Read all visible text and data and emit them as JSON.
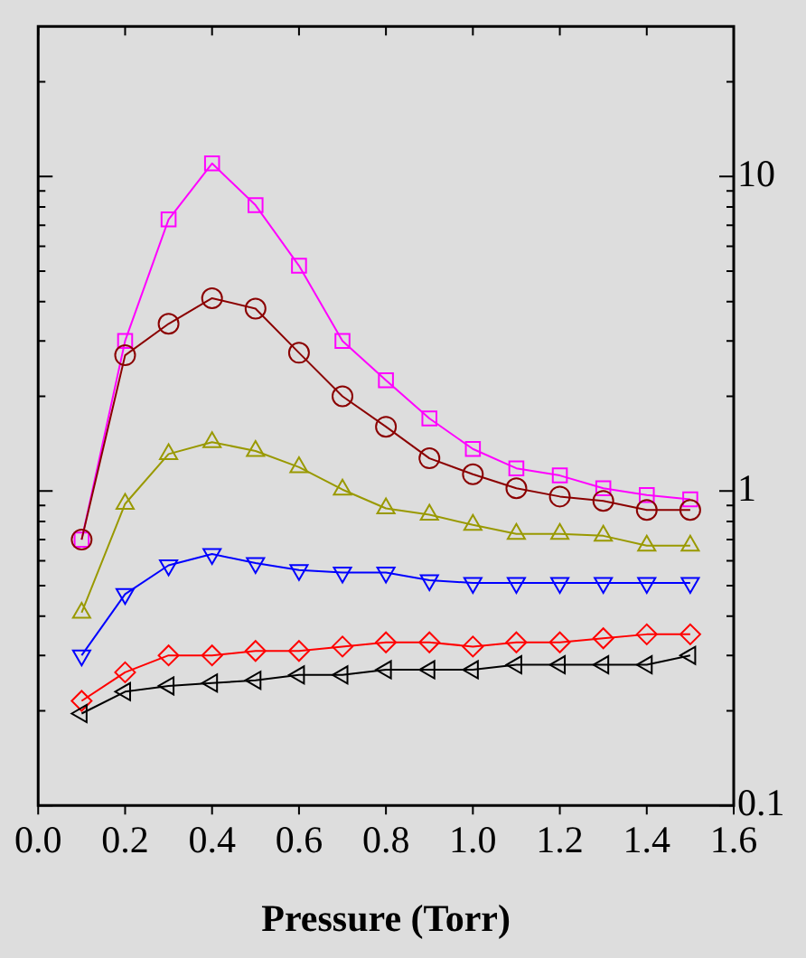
{
  "chart_data": {
    "type": "line",
    "xlabel": "Pressure (Torr)",
    "x": [
      0.1,
      0.2,
      0.3,
      0.4,
      0.5,
      0.6,
      0.7,
      0.8,
      0.9,
      1.0,
      1.1,
      1.2,
      1.3,
      1.4,
      1.5
    ],
    "xlim": [
      0,
      1.6
    ],
    "xticks": [
      {
        "value": 0,
        "label": "0.0"
      },
      0.2,
      0.4,
      0.6,
      0.8,
      {
        "value": 1,
        "label": "1.0"
      },
      1.2,
      1.4,
      1.6
    ],
    "ylim": [
      0.1,
      30
    ],
    "log": "y",
    "yticks": [
      0.1,
      {
        "value": 0.2,
        "label": null
      },
      {
        "value": 0.3,
        "label": null
      },
      {
        "value": 0.4,
        "label": null
      },
      {
        "value": 0.5,
        "label": null
      },
      {
        "value": 0.6,
        "label": null
      },
      {
        "value": 0.7,
        "label": null
      },
      {
        "value": 0.8,
        "label": null
      },
      {
        "value": 0.9,
        "label": null
      },
      1,
      {
        "value": 2,
        "label": null
      },
      {
        "value": 3,
        "label": null
      },
      {
        "value": 4,
        "label": null
      },
      {
        "value": 5,
        "label": null
      },
      {
        "value": 6,
        "label": null
      },
      {
        "value": 7,
        "label": null
      },
      {
        "value": 8,
        "label": null
      },
      {
        "value": 9,
        "label": null
      },
      10,
      {
        "value": 20,
        "label": null
      }
    ],
    "grid": false,
    "legend": false,
    "line_style": "solid",
    "series": [
      {
        "color": "#ff00ff",
        "marker": "square",
        "values": [
          0.7,
          3.0,
          7.3,
          11.0,
          8.1,
          5.2,
          3.0,
          2.25,
          1.7,
          1.36,
          1.18,
          1.12,
          1.02,
          0.97,
          0.94
        ]
      },
      {
        "color": "#8b0000",
        "marker": "circle",
        "values": [
          0.7,
          2.7,
          3.4,
          4.1,
          3.8,
          2.75,
          2.0,
          1.6,
          1.27,
          1.13,
          1.02,
          0.96,
          0.93,
          0.87,
          0.87
        ]
      },
      {
        "color": "#999900",
        "marker": "triangle",
        "values": [
          0.41,
          0.91,
          1.31,
          1.43,
          1.34,
          1.19,
          1.01,
          0.88,
          0.84,
          0.78,
          0.73,
          0.73,
          0.72,
          0.67,
          0.67
        ]
      },
      {
        "color": "#0000ff",
        "marker": "triangle-down",
        "values": [
          0.3,
          0.47,
          0.58,
          0.63,
          0.59,
          0.56,
          0.55,
          0.55,
          0.52,
          0.51,
          0.51,
          0.51,
          0.51,
          0.51,
          0.51
        ]
      },
      {
        "color": "#ff0000",
        "marker": "diamond",
        "values": [
          0.215,
          0.265,
          0.3,
          0.3,
          0.31,
          0.31,
          0.32,
          0.33,
          0.33,
          0.32,
          0.33,
          0.33,
          0.34,
          0.35,
          0.35
        ]
      },
      {
        "color": "#000000",
        "marker": "triangle-left",
        "values": [
          0.196,
          0.23,
          0.24,
          0.245,
          0.25,
          0.26,
          0.26,
          0.27,
          0.27,
          0.27,
          0.28,
          0.28,
          0.28,
          0.28,
          0.3
        ]
      }
    ]
  }
}
